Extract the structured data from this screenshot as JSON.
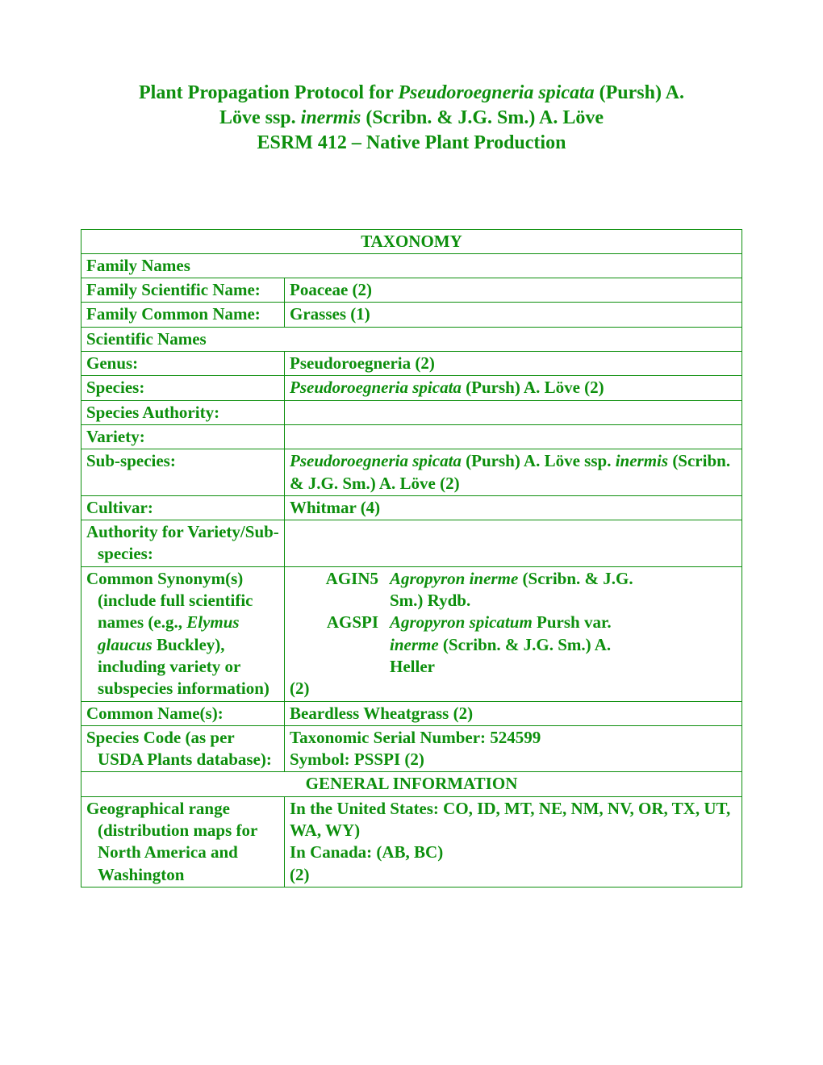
{
  "title": {
    "line1a": "Plant Propagation Protocol for ",
    "line1b": "Pseudoroegneria spicata",
    "line1c": " (Pursh) A.",
    "line2a": "Löve ssp. ",
    "line2b": "inermis",
    "line2c": " (Scribn. & J.G. Sm.) A. Löve",
    "line3": "ESRM 412 – Native Plant Production"
  },
  "sections": {
    "taxonomy": "TAXONOMY",
    "family_names": "Family Names",
    "scientific_names": "Scientific Names",
    "general_info": "GENERAL INFORMATION"
  },
  "rows": {
    "family_scientific": {
      "label": "Family Scientific Name:",
      "value": "Poaceae (2)"
    },
    "family_common": {
      "label": "Family Common Name:",
      "value": "Grasses (1)"
    },
    "genus": {
      "label": "Genus:",
      "value": "Pseudoroegneria (2)"
    },
    "species": {
      "label": "Species:",
      "value_italic": "Pseudoroegneria spicata",
      "value_rest": " (Pursh) A. Löve (2)"
    },
    "species_authority": {
      "label": "Species Authority:",
      "value": ""
    },
    "variety": {
      "label": "Variety:",
      "value": ""
    },
    "subspecies": {
      "label": "Sub-species:",
      "value_italic1": "Pseudoroegneria spicata",
      "value_mid1": " (Pursh) A. Löve ssp. ",
      "value_italic2": "inermis",
      "value_rest": " (Scribn. & J.G. Sm.) A. Löve (2)"
    },
    "cultivar": {
      "label": "Cultivar:",
      "value": "Whitmar (4)"
    },
    "authority_vs": {
      "label": "Authority for Variety/Sub-species:",
      "value": ""
    },
    "common_synonym": {
      "label_part1": "Common Synonym(s) (include full scientific names (e.g., ",
      "label_italic": "Elymus glaucus",
      "label_part2": " Buckley), including variety or subspecies information)",
      "syn1_code": "AGIN5",
      "syn1_italic": "Agropyron inerme",
      "syn1_rest": " (Scribn. & J.G. Sm.) Rydb.",
      "syn2_code": "AGSPI",
      "syn2_italic": "Agropyron spicatum",
      "syn2_mid": " Pursh var. ",
      "syn2_italic2": "inerme",
      "syn2_rest": " (Scribn. & J.G. Sm.) A. Heller",
      "ref": "(2)"
    },
    "common_names": {
      "label": "Common Name(s):",
      "value": "Beardless Wheatgrass (2)"
    },
    "species_code": {
      "label": "Species Code (as per USDA Plants database):",
      "value1": "Taxonomic Serial Number: 524599",
      "value2": "Symbol: PSSPI   (2)"
    },
    "geo_range": {
      "label": "Geographical range (distribution maps for North America and Washington",
      "value1": "In the United States: CO, ID, MT, NE, NM, NV, OR, TX, UT, WA, WY)",
      "value2": "In Canada: (AB, BC)",
      "value3": "(2)"
    }
  }
}
